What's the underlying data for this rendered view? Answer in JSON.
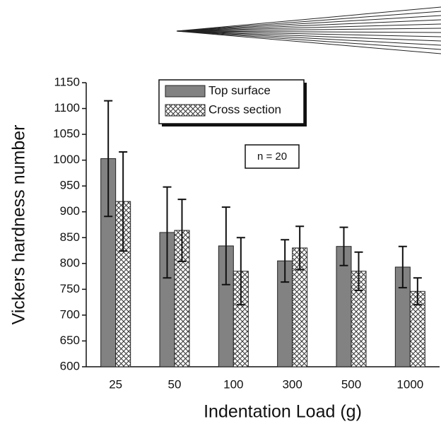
{
  "chart_data": {
    "type": "bar",
    "x_label": "Indentation Load (g)",
    "y_label": "Vickers hardness number",
    "annotation": "n = 20",
    "categories": [
      "25",
      "50",
      "100",
      "300",
      "500",
      "1000"
    ],
    "series": [
      {
        "name": "Top surface",
        "color": "#828282",
        "values": [
          1003,
          860,
          834,
          805,
          833,
          793
        ],
        "errors": [
          112,
          88,
          75,
          41,
          37,
          40
        ]
      },
      {
        "name": "Cross section",
        "color": "#333333",
        "pattern": "crosshatch",
        "values": [
          920,
          864,
          785,
          830,
          785,
          746
        ],
        "errors": [
          96,
          60,
          65,
          42,
          37,
          26
        ]
      }
    ],
    "ylim": [
      600,
      1150
    ],
    "yticks": [
      600,
      650,
      700,
      750,
      800,
      850,
      900,
      950,
      1000,
      1050,
      1100,
      1150
    ],
    "legend": "upper center"
  }
}
